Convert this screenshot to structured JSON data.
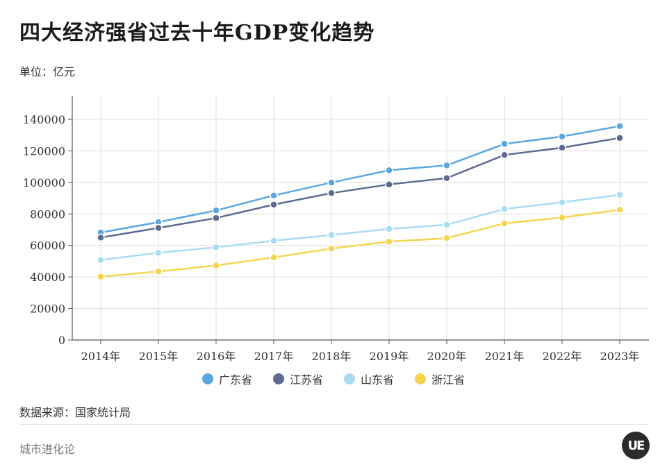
{
  "title": "四大经济强省过去十年GDP变化趋势",
  "unit_label": "单位：亿元",
  "source_label": "数据来源：国家统计局",
  "brand_label": "城市进化论",
  "logo_text": "UE",
  "chart_data": {
    "type": "line",
    "title": "四大经济强省过去十年GDP变化趋势",
    "xlabel": "",
    "ylabel": "单位：亿元",
    "categories": [
      "2014年",
      "2015年",
      "2016年",
      "2017年",
      "2018年",
      "2019年",
      "2020年",
      "2021年",
      "2022年",
      "2023年"
    ],
    "ylim": [
      0,
      140000
    ],
    "yticks": [
      0,
      20000,
      40000,
      60000,
      80000,
      100000,
      120000,
      140000
    ],
    "grid": true,
    "legend_position": "bottom",
    "series": [
      {
        "name": "广东省",
        "color": "#5aa7e0",
        "values": [
          68200,
          74800,
          82200,
          91700,
          99900,
          107700,
          110800,
          124400,
          129100,
          135700
        ]
      },
      {
        "name": "江苏省",
        "color": "#5c6b8f",
        "values": [
          65000,
          71100,
          77400,
          85900,
          93200,
          98700,
          102700,
          117400,
          122000,
          128200
        ]
      },
      {
        "name": "山东省",
        "color": "#a8dcf3",
        "values": [
          50800,
          55300,
          58800,
          63000,
          66600,
          70500,
          73100,
          83100,
          87400,
          92100
        ]
      },
      {
        "name": "浙江省",
        "color": "#f5d54e",
        "values": [
          40200,
          43500,
          47300,
          52400,
          58000,
          62400,
          64600,
          74000,
          77700,
          82600
        ]
      }
    ]
  }
}
